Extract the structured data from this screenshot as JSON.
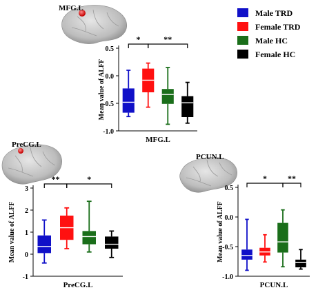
{
  "legend": {
    "placement": "top-right",
    "entries": [
      {
        "name": "Male TRD",
        "color": "#1010c8"
      },
      {
        "name": "Female TRD",
        "color": "#ff1010"
      },
      {
        "name": "Male HC",
        "color": "#1a6e1a"
      },
      {
        "name": "Female HC",
        "color": "#000000"
      }
    ]
  },
  "chart_data": [
    {
      "type": "box",
      "region": "MFG.L",
      "brain_label": "MFG.L",
      "xlabel": "MFG.L",
      "ylabel": "Mean value of ALFF",
      "ylim": [
        -1.0,
        0.5
      ],
      "yticks": [
        "-1.0",
        "-0.5",
        "0.0",
        "0.5"
      ],
      "ytick_values": [
        -1.0,
        -0.5,
        0.0,
        0.5
      ],
      "groups": [
        {
          "name": "Male TRD",
          "color": "#1010c8",
          "min": -0.74,
          "q1": -0.67,
          "median": -0.48,
          "q3": -0.23,
          "max": 0.1
        },
        {
          "name": "Female TRD",
          "color": "#ff1010",
          "min": -0.57,
          "q1": -0.3,
          "median": -0.08,
          "q3": 0.13,
          "max": 0.23
        },
        {
          "name": "Male HC",
          "color": "#1a6e1a",
          "min": -0.88,
          "q1": -0.51,
          "median": -0.34,
          "q3": -0.24,
          "max": 0.15
        },
        {
          "name": "Female HC",
          "color": "#000000",
          "min": -0.86,
          "q1": -0.75,
          "median": -0.49,
          "q3": -0.37,
          "max": -0.12
        }
      ],
      "significance": [
        {
          "from": 0,
          "to": 1,
          "label": "*"
        },
        {
          "from": 1,
          "to": 3,
          "label": "**"
        }
      ]
    },
    {
      "type": "box",
      "region": "PreCG.L",
      "brain_label": "PreCG.L",
      "xlabel": "PreCG.L",
      "ylabel": "Mean value of ALFF",
      "ylim": [
        -1,
        3
      ],
      "yticks": [
        "-1",
        "0",
        "1",
        "2",
        "3"
      ],
      "ytick_values": [
        -1,
        0,
        1,
        2,
        3
      ],
      "groups": [
        {
          "name": "Male TRD",
          "color": "#1010c8",
          "min": -0.4,
          "q1": 0.05,
          "median": 0.35,
          "q3": 0.85,
          "max": 1.55
        },
        {
          "name": "Female TRD",
          "color": "#ff1010",
          "min": 0.25,
          "q1": 0.65,
          "median": 1.2,
          "q3": 1.75,
          "max": 2.1
        },
        {
          "name": "Male HC",
          "color": "#1a6e1a",
          "min": 0.1,
          "q1": 0.45,
          "median": 0.8,
          "q3": 1.05,
          "max": 2.4
        },
        {
          "name": "Female HC",
          "color": "#000000",
          "min": -0.15,
          "q1": 0.25,
          "median": 0.45,
          "q3": 0.8,
          "max": 1.05
        }
      ],
      "significance": [
        {
          "from": 0,
          "to": 1,
          "label": "**"
        },
        {
          "from": 1,
          "to": 3,
          "label": "*"
        }
      ]
    },
    {
      "type": "box",
      "region": "PCUN.L",
      "brain_label": "PCUN.L",
      "xlabel": "PCUN.L",
      "ylabel": "Mean value of ALFF",
      "ylim": [
        -1.0,
        0.5
      ],
      "yticks": [
        "-1.0",
        "-0.5",
        "0.0",
        "0.5"
      ],
      "ytick_values": [
        -1.0,
        -0.5,
        0.0,
        0.5
      ],
      "groups": [
        {
          "name": "Male TRD",
          "color": "#1010c8",
          "min": -0.9,
          "q1": -0.72,
          "median": -0.65,
          "q3": -0.55,
          "max": -0.04
        },
        {
          "name": "Female TRD",
          "color": "#ff1010",
          "min": -0.76,
          "q1": -0.65,
          "median": -0.59,
          "q3": -0.52,
          "max": -0.3
        },
        {
          "name": "Male HC",
          "color": "#1a6e1a",
          "min": -0.84,
          "q1": -0.6,
          "median": -0.42,
          "q3": -0.1,
          "max": 0.12
        },
        {
          "name": "Female HC",
          "color": "#000000",
          "min": -0.88,
          "q1": -0.85,
          "median": -0.77,
          "q3": -0.72,
          "max": -0.55
        }
      ],
      "significance": [
        {
          "from": 0,
          "to": 2,
          "label": "*"
        },
        {
          "from": 2,
          "to": 3,
          "label": "**"
        }
      ]
    }
  ]
}
